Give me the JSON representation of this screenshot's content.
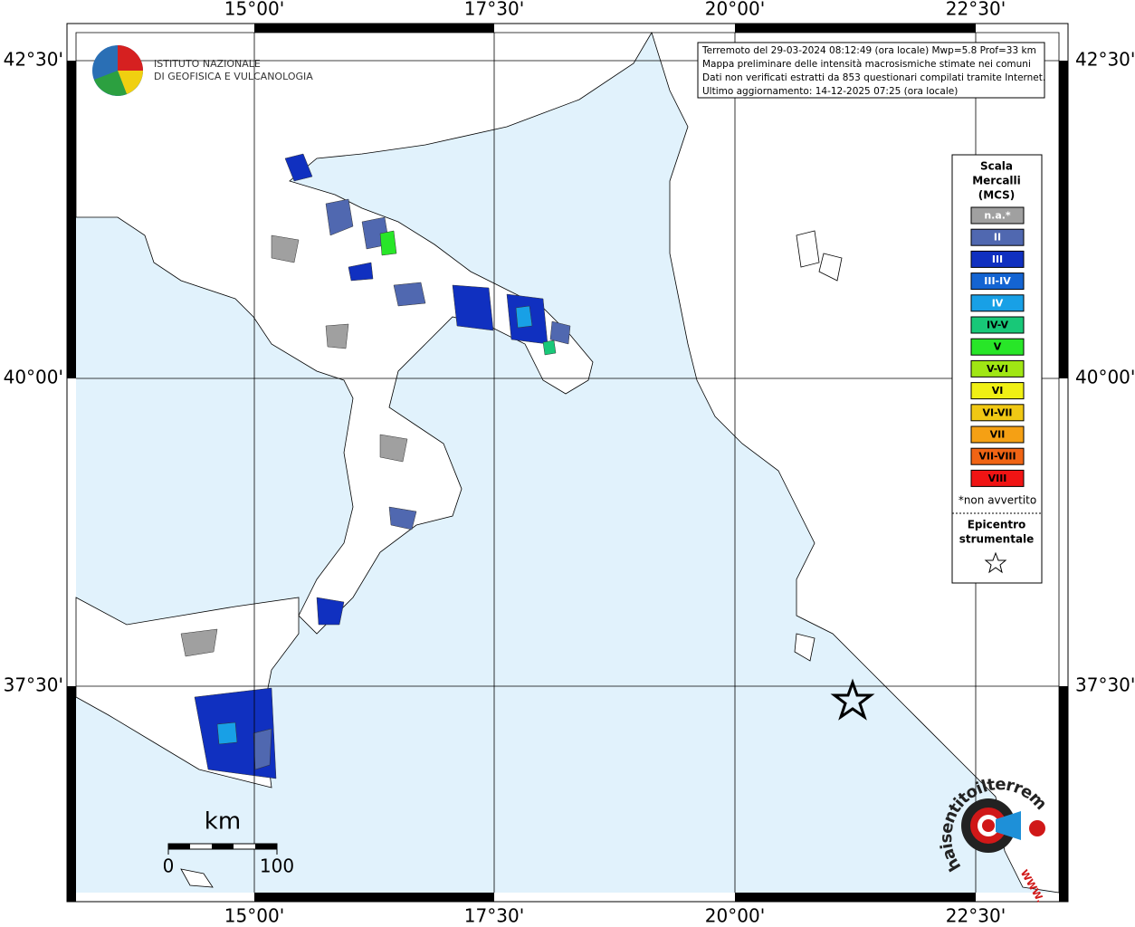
{
  "map": {
    "longitudes": [
      "15°00'",
      "17°30'",
      "20°00'",
      "22°30'"
    ],
    "latitudes": [
      "42°30'",
      "40°00'",
      "37°30'"
    ]
  },
  "logo": {
    "lines": [
      "ISTITUTO NAZIONALE",
      "DI GEOFISICA E VULCANOLOGIA"
    ]
  },
  "info_box": {
    "lines": [
      "Terremoto del 29-03-2024 08:12:49 (ora locale) Mwp=5.8 Prof=33 km",
      "Mappa preliminare delle intensità macrosismiche stimate nei comuni",
      "Dati non verificati estratti da 853 questionari compilati tramite Internet.",
      "Ultimo aggiornamento: 14-12-2025 07:25 (ora locale)"
    ]
  },
  "legend": {
    "title": [
      "Scala",
      "Mercalli",
      "(MCS)"
    ],
    "items": [
      {
        "label": "n.a.*",
        "color": "#a0a0a0"
      },
      {
        "label": "II",
        "color": "#5068b0"
      },
      {
        "label": "III",
        "color": "#1030c0"
      },
      {
        "label": "III-IV",
        "color": "#1464d2"
      },
      {
        "label": "IV",
        "color": "#18a0e6"
      },
      {
        "label": "IV-V",
        "color": "#18c878"
      },
      {
        "label": "V",
        "color": "#28e628"
      },
      {
        "label": "V-VI",
        "color": "#a0e614"
      },
      {
        "label": "VI",
        "color": "#f0f014"
      },
      {
        "label": "VI-VII",
        "color": "#f0c814"
      },
      {
        "label": "VII",
        "color": "#f5a014"
      },
      {
        "label": "VII-VIII",
        "color": "#f06414"
      },
      {
        "label": "VIII",
        "color": "#f01414"
      }
    ],
    "note": "*non avvertito",
    "epicenter_title": [
      "Epicentro",
      "strumentale"
    ]
  },
  "scale_bar": {
    "unit": "km",
    "labels": [
      "0",
      "100"
    ]
  },
  "watermark": {
    "text": "haisentitoilterremoto.it",
    "prefix": "WWW."
  }
}
